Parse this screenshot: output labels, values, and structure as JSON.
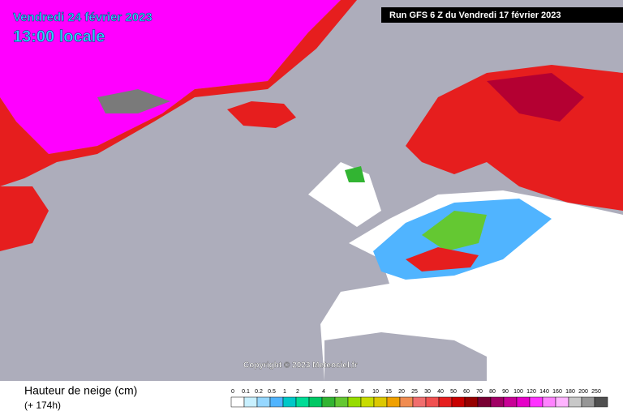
{
  "header": {
    "date": "Vendredi 24 février 2023",
    "time": "13:00 locale",
    "run": "Run GFS 6 Z du Vendredi 17 février 2023"
  },
  "map": {
    "copyright": "Copyright © 2023 Meteociel.fr"
  },
  "footer": {
    "title": "Hauteur de neige (cm)",
    "lead": "(+ 174h)"
  },
  "legend": {
    "items": [
      {
        "label": "0",
        "color": "#ffffff"
      },
      {
        "label": "0.1",
        "color": "#c8f0ff"
      },
      {
        "label": "0.2",
        "color": "#96d7ff"
      },
      {
        "label": "0.5",
        "color": "#50b4ff"
      },
      {
        "label": "1",
        "color": "#00c8c8"
      },
      {
        "label": "2",
        "color": "#00dc96"
      },
      {
        "label": "3",
        "color": "#00c864"
      },
      {
        "label": "4",
        "color": "#32b432"
      },
      {
        "label": "5",
        "color": "#64c832"
      },
      {
        "label": "6",
        "color": "#96dc00"
      },
      {
        "label": "8",
        "color": "#c8dc00"
      },
      {
        "label": "10",
        "color": "#dcc800"
      },
      {
        "label": "15",
        "color": "#f0a000"
      },
      {
        "label": "20",
        "color": "#f08c50"
      },
      {
        "label": "25",
        "color": "#f06e6e"
      },
      {
        "label": "30",
        "color": "#f05050"
      },
      {
        "label": "40",
        "color": "#e61e1e"
      },
      {
        "label": "50",
        "color": "#c80000"
      },
      {
        "label": "60",
        "color": "#960000"
      },
      {
        "label": "70",
        "color": "#780032"
      },
      {
        "label": "80",
        "color": "#a00064"
      },
      {
        "label": "90",
        "color": "#c80096"
      },
      {
        "label": "100",
        "color": "#e600c8"
      },
      {
        "label": "120",
        "color": "#ff32ff"
      },
      {
        "label": "140",
        "color": "#ff82ff"
      },
      {
        "label": "160",
        "color": "#ffb4ff"
      },
      {
        "label": "180",
        "color": "#c8c8c8"
      },
      {
        "label": "200",
        "color": "#969696"
      },
      {
        "label": "250",
        "color": "#505050"
      }
    ]
  }
}
